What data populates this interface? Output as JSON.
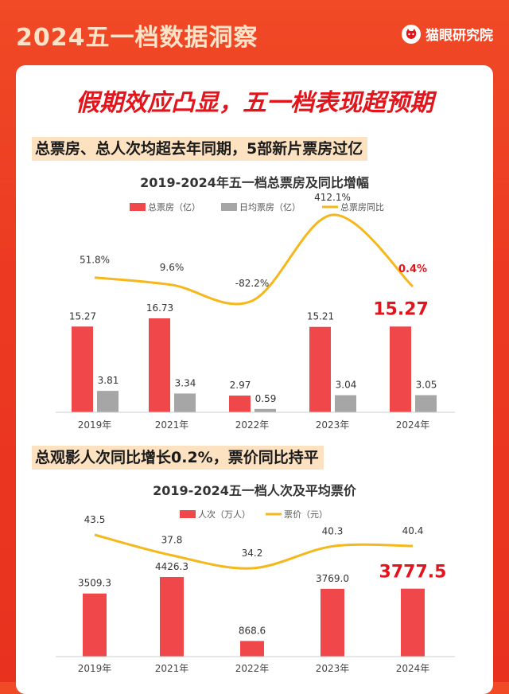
{
  "header": {
    "title": "2024五一档数据洞察",
    "brand": "猫眼研究院",
    "brand_icon": "cat-face-icon"
  },
  "headline": "假期效应凸显，五一档表现超预期",
  "section1": {
    "subtitle": "总票房、总人次均超去年同期，5部新片票房过亿"
  },
  "section2": {
    "subtitle": "总观影人次同比增长0.2%，票价同比持平"
  },
  "colors": {
    "red_bar": "#f0474a",
    "gray_bar": "#a6a6a6",
    "gold_line": "#f5b81c",
    "highlight": "#e4141c"
  },
  "chart_data": [
    {
      "type": "bar",
      "title": "2019-2024年五一档总票房及同比增幅",
      "categories": [
        "2019年",
        "2021年",
        "2022年",
        "2023年",
        "2024年"
      ],
      "series": [
        {
          "name": "总票房（亿）",
          "kind": "bar",
          "values": [
            15.27,
            16.73,
            2.97,
            15.21,
            15.27
          ],
          "labels": [
            "15.27",
            "16.73",
            "2.97",
            "15.21",
            "15.27"
          ]
        },
        {
          "name": "日均票房（亿）",
          "kind": "bar",
          "values": [
            3.81,
            3.34,
            0.59,
            3.04,
            3.05
          ],
          "labels": [
            "3.81",
            "3.34",
            "0.59",
            "3.04",
            "3.05"
          ]
        },
        {
          "name": "总票房同比",
          "kind": "line",
          "values": [
            51.8,
            9.6,
            -82.2,
            412.1,
            0.4
          ],
          "labels": [
            "51.8%",
            "9.6%",
            "-82.2%",
            "412.1%",
            "0.4%"
          ]
        }
      ],
      "highlight_index": 4,
      "legend_position": "top"
    },
    {
      "type": "bar",
      "title": "2019-2024五一档人次及平均票价",
      "categories": [
        "2019年",
        "2021年",
        "2022年",
        "2023年",
        "2024年"
      ],
      "series": [
        {
          "name": "人次（万人）",
          "kind": "bar",
          "values": [
            3509.3,
            4426.3,
            868.6,
            3769.0,
            3777.5
          ],
          "labels": [
            "3509.3",
            "4426.3",
            "868.6",
            "3769.0",
            "3777.5"
          ]
        },
        {
          "name": "票价（元）",
          "kind": "line",
          "values": [
            43.5,
            37.8,
            34.2,
            40.3,
            40.4
          ],
          "labels": [
            "43.5",
            "37.8",
            "34.2",
            "40.3",
            "40.4"
          ]
        }
      ],
      "highlight_index": 4,
      "legend_position": "top"
    }
  ]
}
